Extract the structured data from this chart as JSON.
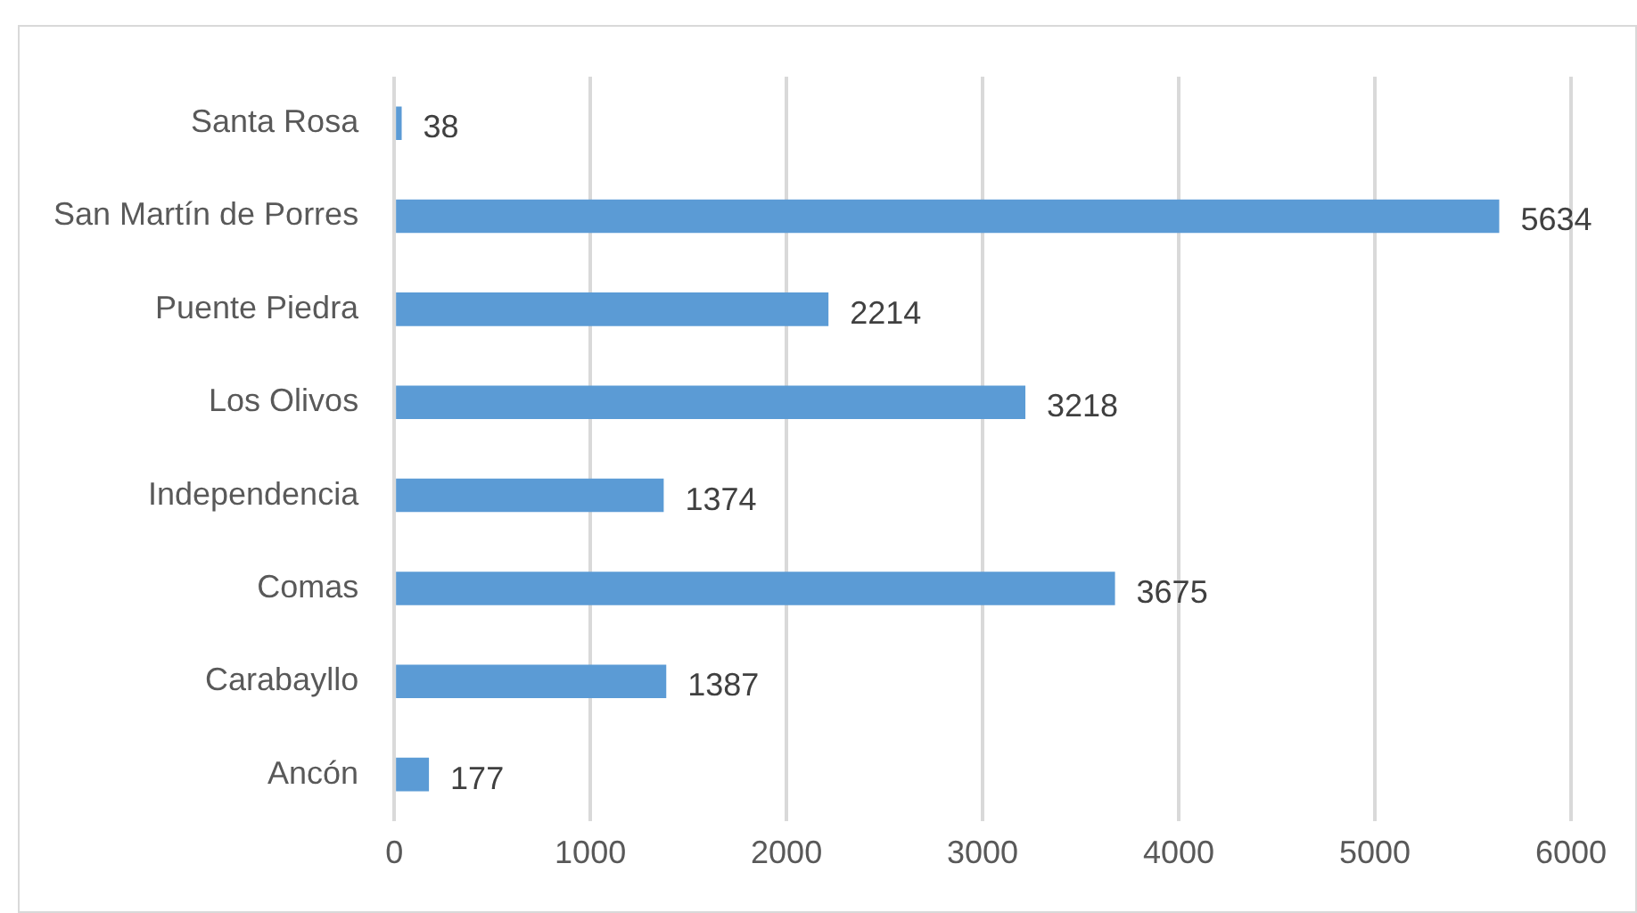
{
  "chart_data": {
    "type": "bar",
    "orientation": "horizontal",
    "categories": [
      "Santa Rosa",
      "San Martín de Porres",
      "Puente Piedra",
      "Los Olivos",
      "Independencia",
      "Comas",
      "Carabayllo",
      "Ancón"
    ],
    "values": [
      38,
      5634,
      2214,
      3218,
      1374,
      3675,
      1387,
      177
    ],
    "color": "#5b9bd5",
    "xlim": [
      0,
      6000
    ],
    "xticks": [
      0,
      1000,
      2000,
      3000,
      4000,
      5000,
      6000
    ],
    "grid": "x",
    "legend": false,
    "data_labels": true
  }
}
